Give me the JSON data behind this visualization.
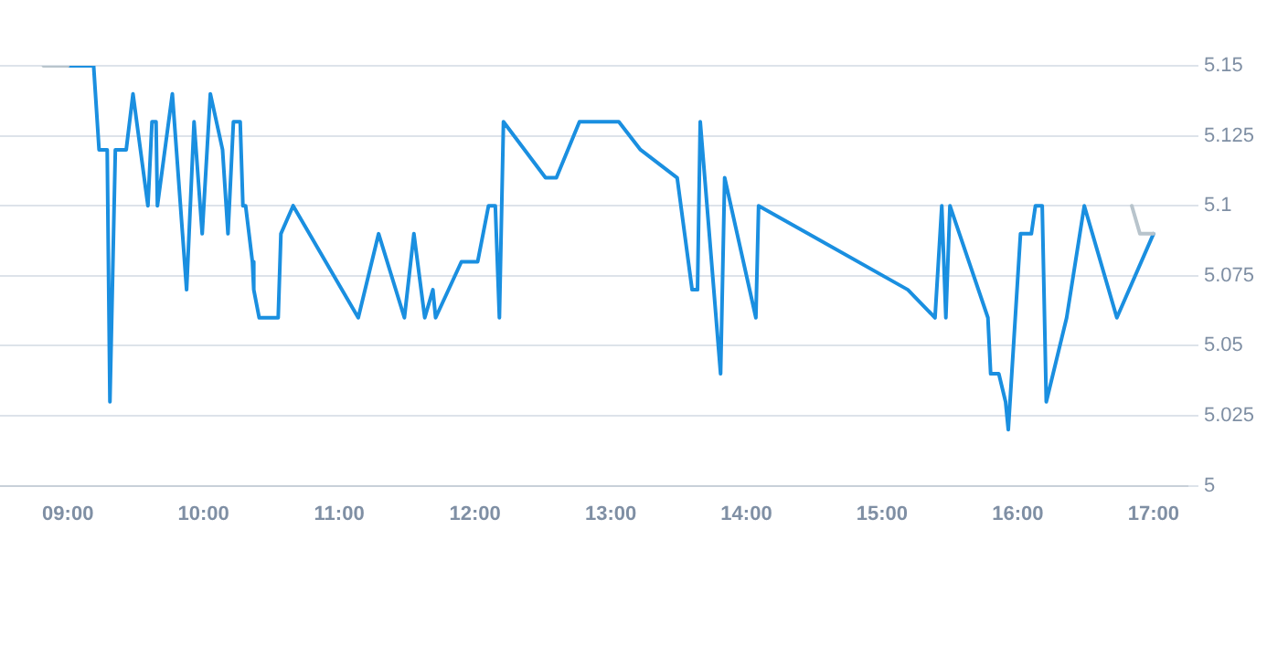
{
  "chart_data": {
    "type": "line",
    "grid": "y",
    "legend": false,
    "marker": "none",
    "line_style": "solid",
    "xlim": [
      8.5,
      17.25
    ],
    "xticks": [
      {
        "value": 9,
        "label": "09:00"
      },
      {
        "value": 10,
        "label": "10:00"
      },
      {
        "value": 11,
        "label": "11:00"
      },
      {
        "value": 12,
        "label": "12:00"
      },
      {
        "value": 13,
        "label": "13:00"
      },
      {
        "value": 14,
        "label": "14:00"
      },
      {
        "value": 15,
        "label": "15:00"
      },
      {
        "value": 16,
        "label": "16:00"
      },
      {
        "value": 17,
        "label": "17:00"
      }
    ],
    "ylim": [
      5,
      5.15
    ],
    "yticks": [
      5,
      5.025,
      5.05,
      5.075,
      5.1,
      5.125,
      5.15
    ],
    "series": [
      {
        "color": "#b8c4cc",
        "x": [
          8.82,
          9.0
        ],
        "values": [
          5.15,
          5.15
        ]
      },
      {
        "color": "#b8c4cc",
        "x": [
          16.84,
          16.9,
          17.0
        ],
        "values": [
          5.1,
          5.09,
          5.09
        ]
      },
      {
        "color": "#1a8fe0",
        "x": [
          9.0,
          9.19,
          9.23,
          9.29,
          9.31,
          9.35,
          9.43,
          9.48,
          9.59,
          9.62,
          9.65,
          9.66,
          9.77,
          9.875,
          9.93,
          9.99,
          10.05,
          10.14,
          10.18,
          10.22,
          10.27,
          10.29,
          10.31,
          10.36,
          10.37,
          10.41,
          10.55,
          10.57,
          10.66,
          11.14,
          11.29,
          11.48,
          11.55,
          11.63,
          11.69,
          11.71,
          11.9,
          12.02,
          12.1,
          12.15,
          12.18,
          12.21,
          12.52,
          12.6,
          12.77,
          13.06,
          13.22,
          13.49,
          13.6,
          13.64,
          13.66,
          13.81,
          13.84,
          14.07,
          14.09,
          15.19,
          15.39,
          15.44,
          15.47,
          15.5,
          15.78,
          15.8,
          15.86,
          15.91,
          15.93,
          16.02,
          16.1,
          16.13,
          16.18,
          16.21,
          16.36,
          16.49,
          16.73,
          17.0
        ],
        "values": [
          5.15,
          5.15,
          5.12,
          5.12,
          5.03,
          5.12,
          5.12,
          5.14,
          5.1,
          5.13,
          5.13,
          5.1,
          5.14,
          5.07,
          5.13,
          5.09,
          5.14,
          5.12,
          5.09,
          5.13,
          5.13,
          5.1,
          5.1,
          5.08,
          5.07,
          5.06,
          5.06,
          5.09,
          5.1,
          5.06,
          5.09,
          5.06,
          5.09,
          5.06,
          5.07,
          5.06,
          5.08,
          5.08,
          5.1,
          5.1,
          5.06,
          5.13,
          5.11,
          5.11,
          5.13,
          5.13,
          5.12,
          5.11,
          5.07,
          5.07,
          5.13,
          5.04,
          5.11,
          5.06,
          5.1,
          5.07,
          5.06,
          5.1,
          5.06,
          5.1,
          5.06,
          5.04,
          5.04,
          5.03,
          5.02,
          5.09,
          5.09,
          5.1,
          5.1,
          5.03,
          5.06,
          5.1,
          5.06,
          5.09
        ]
      }
    ]
  }
}
